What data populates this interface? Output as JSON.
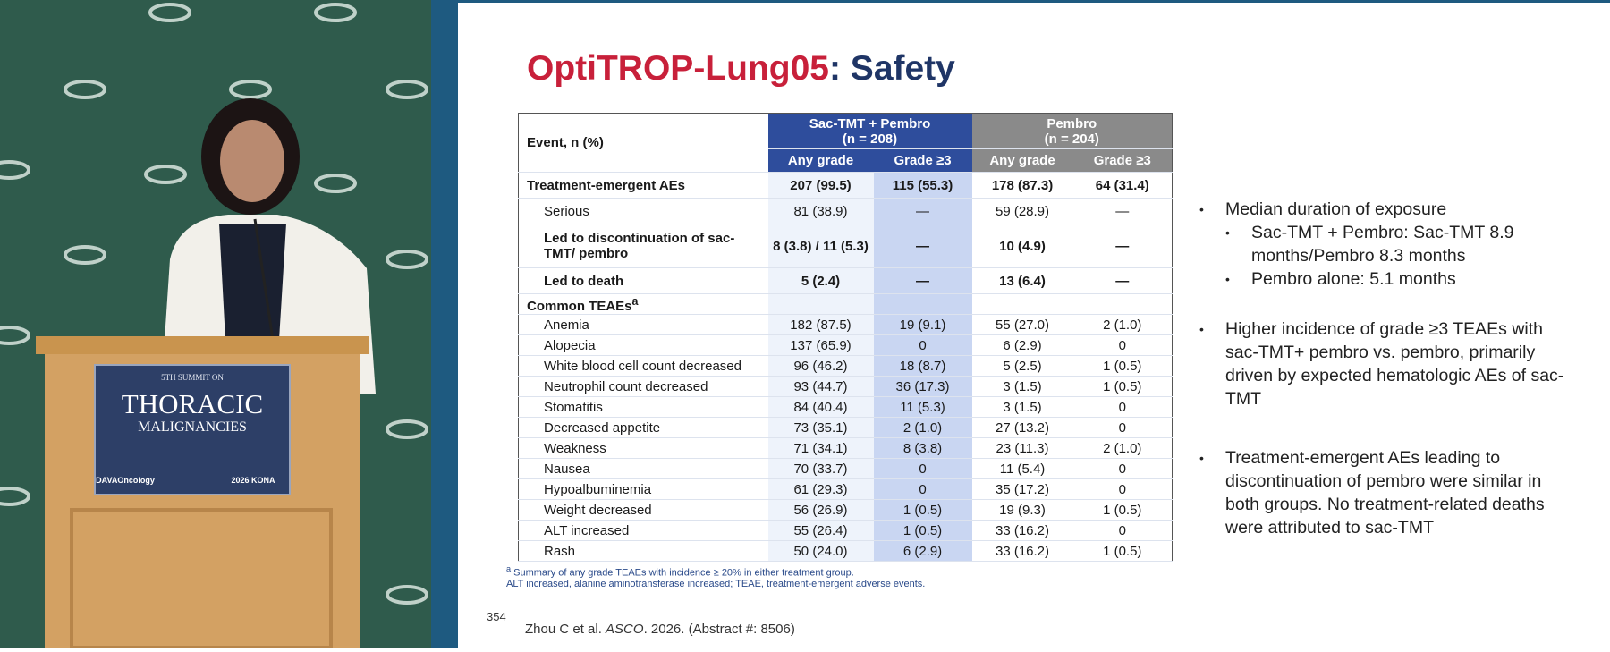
{
  "podium": {
    "line1": "5TH SUMMIT ON",
    "line2": "THORACIC",
    "line3": "MALIGNANCIES",
    "logo": "DAVAOncology",
    "badge": "2026 KONA"
  },
  "slide": {
    "title_red": "OptiTROP-Lung05",
    "title_blue": ": Safety",
    "table": {
      "event_header": "Event, n (%)",
      "groups": [
        {
          "name": "Sac-TMT + Pembro",
          "n": "(n = 208)"
        },
        {
          "name": "Pembro",
          "n": "(n = 204)"
        }
      ],
      "subheaders": [
        "Any grade",
        "Grade ≥3",
        "Any grade",
        "Grade ≥3"
      ],
      "rows": [
        {
          "label": "Treatment-emergent AEs",
          "cells": [
            "207 (99.5)",
            "115 (55.3)",
            "178 (87.3)",
            "64 (31.4)"
          ],
          "bold": true,
          "indent": 0
        },
        {
          "label": "Serious",
          "cells": [
            "81 (38.9)",
            "—",
            "59 (28.9)",
            "—"
          ],
          "bold": false,
          "indent": 1
        },
        {
          "label": "Led to discontinuation of sac-TMT/ pembro",
          "cells": [
            "8 (3.8) / 11 (5.3)",
            "—",
            "10 (4.9)",
            "—"
          ],
          "bold": true,
          "indent": 1
        },
        {
          "label": "Led to death",
          "cells": [
            "5 (2.4)",
            "—",
            "13 (6.4)",
            "—"
          ],
          "bold": true,
          "indent": 1
        },
        {
          "label": "Common TEAEs",
          "sup": "a",
          "cells": [
            "",
            "",
            "",
            ""
          ],
          "bold": true,
          "indent": 0
        },
        {
          "label": "Anemia",
          "cells": [
            "182 (87.5)",
            "19 (9.1)",
            "55 (27.0)",
            "2 (1.0)"
          ],
          "bold": false,
          "indent": 1
        },
        {
          "label": "Alopecia",
          "cells": [
            "137 (65.9)",
            "0",
            "6 (2.9)",
            "0"
          ],
          "bold": false,
          "indent": 1
        },
        {
          "label": "White blood cell count decreased",
          "cells": [
            "96 (46.2)",
            "18 (8.7)",
            "5 (2.5)",
            "1 (0.5)"
          ],
          "bold": false,
          "indent": 1
        },
        {
          "label": "Neutrophil count decreased",
          "cells": [
            "93 (44.7)",
            "36 (17.3)",
            "3 (1.5)",
            "1 (0.5)"
          ],
          "bold": false,
          "indent": 1
        },
        {
          "label": "Stomatitis",
          "cells": [
            "84 (40.4)",
            "11 (5.3)",
            "3 (1.5)",
            "0"
          ],
          "bold": false,
          "indent": 1
        },
        {
          "label": "Decreased appetite",
          "cells": [
            "73 (35.1)",
            "2 (1.0)",
            "27 (13.2)",
            "0"
          ],
          "bold": false,
          "indent": 1
        },
        {
          "label": "Weakness",
          "cells": [
            "71 (34.1)",
            "8 (3.8)",
            "23 (11.3)",
            "2 (1.0)"
          ],
          "bold": false,
          "indent": 1
        },
        {
          "label": "Nausea",
          "cells": [
            "70 (33.7)",
            "0",
            "11 (5.4)",
            "0"
          ],
          "bold": false,
          "indent": 1
        },
        {
          "label": "Hypoalbuminemia",
          "cells": [
            "61 (29.3)",
            "0",
            "35 (17.2)",
            "0"
          ],
          "bold": false,
          "indent": 1
        },
        {
          "label": "Weight decreased",
          "cells": [
            "56 (26.9)",
            "1 (0.5)",
            "19 (9.3)",
            "1 (0.5)"
          ],
          "bold": false,
          "indent": 1
        },
        {
          "label": "ALT increased",
          "cells": [
            "55 (26.4)",
            "1 (0.5)",
            "33 (16.2)",
            "0"
          ],
          "bold": false,
          "indent": 1
        },
        {
          "label": "Rash",
          "cells": [
            "50 (24.0)",
            "6 (2.9)",
            "33 (16.2)",
            "1 (0.5)"
          ],
          "bold": false,
          "indent": 1
        }
      ]
    },
    "footnote_sup": "a",
    "footnote1": "Summary of any grade TEAEs with incidence ≥ 20% in either treatment group.",
    "footnote2": "ALT increased, alanine aminotransferase increased; TEAE, treatment-emergent adverse events.",
    "page_number": "354",
    "citation": {
      "before": "Zhou C et al. ",
      "journal": "ASCO",
      "after": ". 2026. (Abstract #: 8506)"
    },
    "bullets": [
      {
        "text": "Median duration of exposure",
        "sub": [
          "Sac-TMT + Pembro: Sac-TMT 8.9 months/Pembro 8.3 months",
          "Pembro alone: 5.1 months"
        ]
      },
      {
        "text": "Higher incidence of grade ≥3 TEAEs with sac-TMT+ pembro vs. pembro, primarily driven by expected hematologic AEs of sac-TMT",
        "sub": []
      },
      {
        "text": "Treatment-emergent AEs leading to discontinuation of pembro were similar in both groups. No treatment-related deaths were attributed to sac-TMT",
        "sub": []
      }
    ]
  }
}
